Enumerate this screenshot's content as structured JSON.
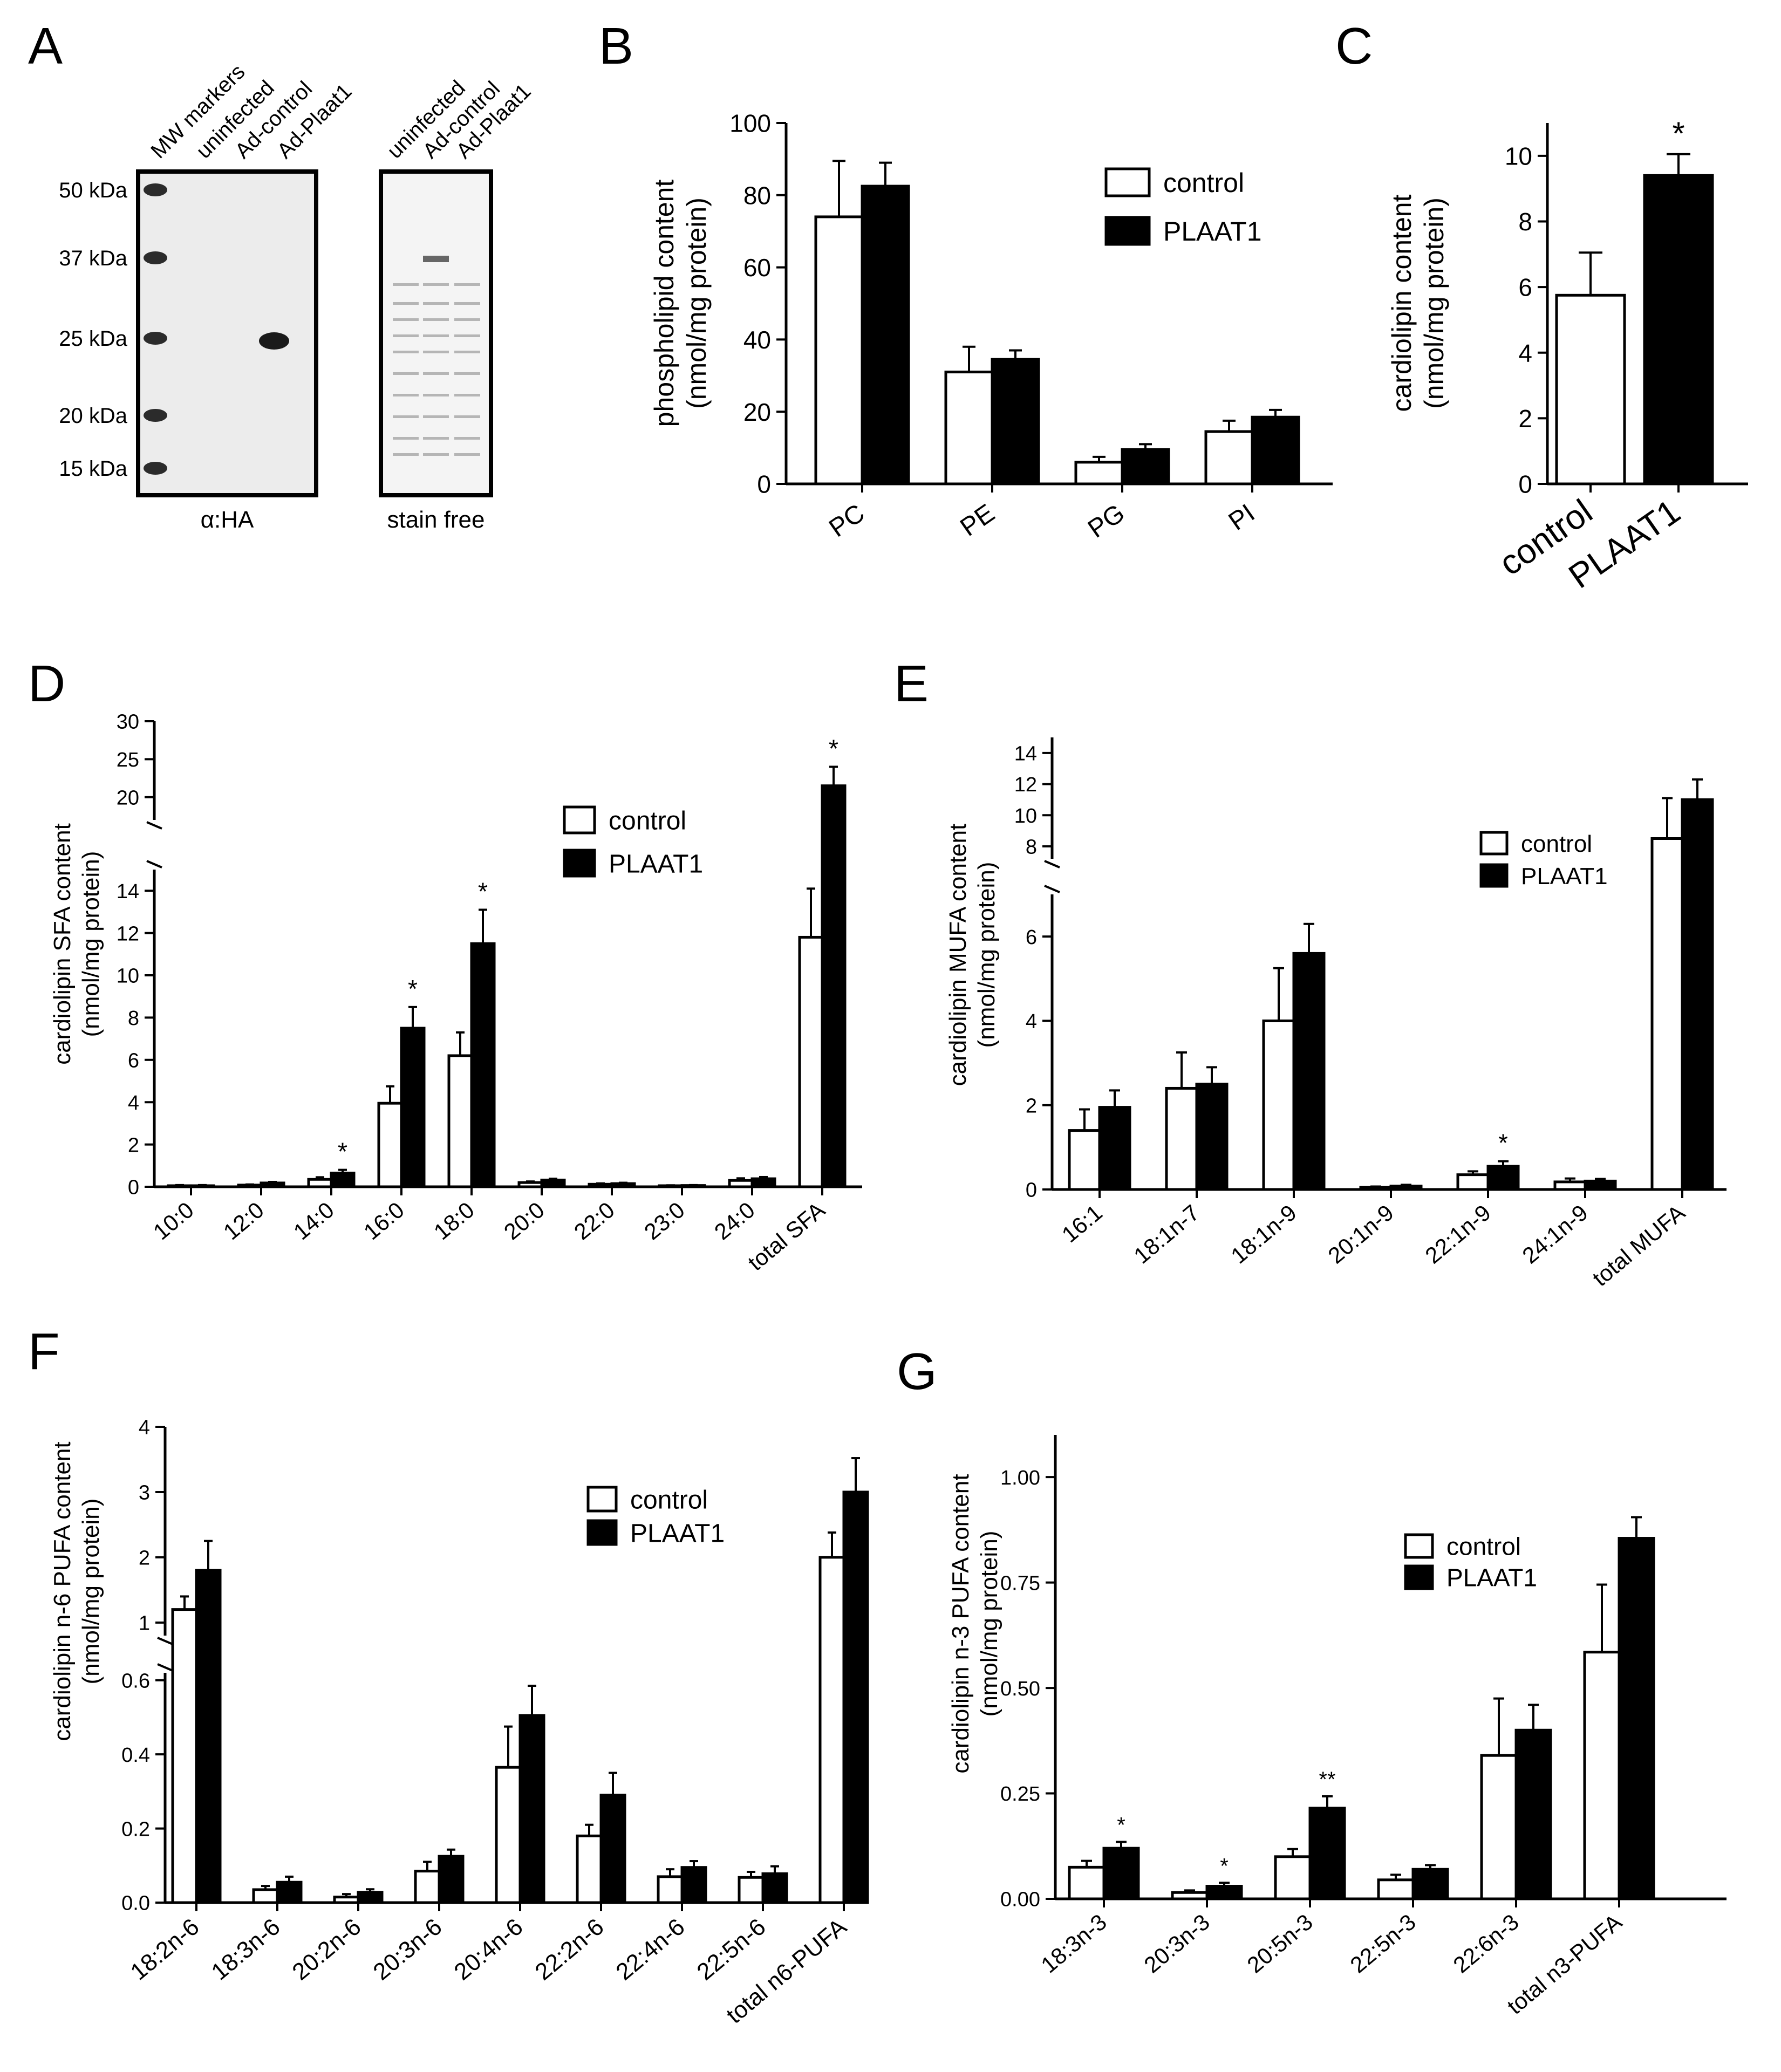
{
  "chart_data": [
    {
      "id": "A",
      "type": "other",
      "panel_label": "A",
      "blots": [
        {
          "lanes": [
            "MW markers",
            "uninfected",
            "Ad-control",
            "Ad-Plaat1"
          ],
          "markers": [
            "50 kDa",
            "37 kDa",
            "25 kDa",
            "20 kDa",
            "15 kDa"
          ],
          "caption": "α:HA"
        },
        {
          "lanes": [
            "uninfected",
            "Ad-control",
            "Ad-Plaat1"
          ],
          "caption": "stain free"
        }
      ]
    },
    {
      "id": "B",
      "type": "bar",
      "panel_label": "B",
      "ylabel": [
        "phospholipid content",
        "(nmol/mg protein)"
      ],
      "ylim": [
        0,
        100
      ],
      "yticks": [
        0,
        20,
        40,
        60,
        80,
        100
      ],
      "categories": [
        "PC",
        "PE",
        "PG",
        "PI"
      ],
      "series": [
        {
          "name": "control",
          "values": [
            74,
            31,
            6,
            14.5
          ],
          "errors": [
            15.5,
            7,
            1.5,
            3
          ]
        },
        {
          "name": "PLAAT1",
          "values": [
            82.5,
            34.5,
            9.5,
            18.5
          ],
          "errors": [
            6.5,
            2.5,
            1.5,
            2
          ]
        }
      ],
      "legend": [
        "control",
        "PLAAT1"
      ],
      "stars": []
    },
    {
      "id": "C",
      "type": "bar",
      "panel_label": "C",
      "ylabel": [
        "cardiolipin content",
        "(nmol/mg protein)"
      ],
      "ylim": [
        0,
        11
      ],
      "yticks": [
        0,
        2,
        4,
        6,
        8,
        10
      ],
      "categories": [
        "control",
        "PLAAT1"
      ],
      "series": [
        {
          "name": "values",
          "values": [
            5.75,
            9.4
          ],
          "errors": [
            1.3,
            0.65
          ]
        }
      ],
      "stars": [
        {
          "category": 1,
          "text": "*"
        }
      ]
    },
    {
      "id": "D",
      "type": "bar",
      "panel_label": "D",
      "ylabel": [
        "cardiolipin SFA content",
        "(nmol/mg protein)"
      ],
      "segments": [
        {
          "ylim": [
            0,
            15
          ],
          "yticks": [
            0,
            2,
            4,
            6,
            8,
            10,
            12,
            14
          ]
        },
        {
          "ylim": [
            17,
            30
          ],
          "yticks": [
            20,
            25,
            30
          ]
        }
      ],
      "categories": [
        "10:0",
        "12:0",
        "14:0",
        "16:0",
        "18:0",
        "20:0",
        "22:0",
        "23:0",
        "24:0",
        "total SFA"
      ],
      "series": [
        {
          "name": "control",
          "values": [
            0.05,
            0.08,
            0.35,
            3.95,
            6.2,
            0.2,
            0.12,
            0.05,
            0.3,
            11.8
          ],
          "errors": [
            0.03,
            0.03,
            0.1,
            0.8,
            1.1,
            0.05,
            0.04,
            0.02,
            0.1,
            2.3
          ]
        },
        {
          "name": "PLAAT1",
          "values": [
            0.05,
            0.18,
            0.65,
            7.5,
            11.5,
            0.32,
            0.15,
            0.06,
            0.38,
            21.5
          ],
          "errors": [
            0.03,
            0.05,
            0.15,
            1.0,
            1.6,
            0.06,
            0.04,
            0.02,
            0.08,
            2.5
          ]
        }
      ],
      "legend": [
        "control",
        "PLAAT1"
      ],
      "stars": [
        {
          "category": 2,
          "text": "*"
        },
        {
          "category": 3,
          "text": "*"
        },
        {
          "category": 4,
          "text": "*"
        },
        {
          "category": 9,
          "text": "*"
        }
      ]
    },
    {
      "id": "E",
      "type": "bar",
      "panel_label": "E",
      "ylabel": [
        "cardiolipin MUFA content",
        "(nmol/mg protein)"
      ],
      "segments": [
        {
          "ylim": [
            0,
            7
          ],
          "yticks": [
            0,
            2,
            4,
            6
          ]
        },
        {
          "ylim": [
            7.2,
            15
          ],
          "yticks": [
            8,
            10,
            12,
            14
          ]
        }
      ],
      "categories": [
        "16:1",
        "18:1n-7",
        "18:1n-9",
        "20:1n-9",
        "22:1n-9",
        "24:1n-9",
        "total MUFA"
      ],
      "series": [
        {
          "name": "control",
          "values": [
            1.4,
            2.4,
            4.0,
            0.05,
            0.35,
            0.18,
            8.5
          ],
          "errors": [
            0.5,
            0.85,
            1.25,
            0.02,
            0.08,
            0.08,
            2.6
          ]
        },
        {
          "name": "PLAAT1",
          "values": [
            1.95,
            2.5,
            5.6,
            0.08,
            0.55,
            0.2,
            11.0
          ],
          "errors": [
            0.4,
            0.4,
            0.7,
            0.03,
            0.12,
            0.05,
            1.3
          ]
        }
      ],
      "legend": [
        "control",
        "PLAAT1"
      ],
      "stars": [
        {
          "category": 4,
          "text": "*"
        }
      ]
    },
    {
      "id": "F",
      "type": "bar",
      "panel_label": "F",
      "ylabel": [
        "cardiolipin n-6 PUFA content",
        "(nmol/mg protein)"
      ],
      "segments": [
        {
          "ylim": [
            0,
            0.62
          ],
          "yticks": [
            0.0,
            0.2,
            0.4,
            0.6
          ],
          "tick_labels": [
            "0.0",
            "0.2",
            "0.4",
            "0.6"
          ]
        },
        {
          "ylim": [
            0.8,
            4
          ],
          "yticks": [
            1,
            2,
            3,
            4
          ],
          "tick_labels": [
            "1",
            "2",
            "3",
            "4"
          ]
        }
      ],
      "categories": [
        "18:2n-6",
        "18:3n-6",
        "20:2n-6",
        "20:3n-6",
        "20:4n-6",
        "22:2n-6",
        "22:4n-6",
        "22:5n-6",
        "total n6-PUFA"
      ],
      "series": [
        {
          "name": "control",
          "values": [
            1.2,
            0.035,
            0.015,
            0.085,
            0.365,
            0.18,
            0.07,
            0.068,
            2.0
          ],
          "errors": [
            0.2,
            0.01,
            0.008,
            0.025,
            0.11,
            0.03,
            0.02,
            0.015,
            0.38
          ]
        },
        {
          "name": "PLAAT1",
          "values": [
            1.8,
            0.055,
            0.028,
            0.125,
            0.505,
            0.29,
            0.095,
            0.078,
            3.0
          ],
          "errors": [
            0.45,
            0.015,
            0.008,
            0.018,
            0.08,
            0.06,
            0.017,
            0.02,
            0.52
          ]
        }
      ],
      "legend": [
        "control",
        "PLAAT1"
      ],
      "stars": []
    },
    {
      "id": "G",
      "type": "bar",
      "panel_label": "G",
      "ylabel": [
        "cardiolipin n-3 PUFA content",
        "(nmol/mg protein)"
      ],
      "ylim": [
        0,
        1.1
      ],
      "yticks": [
        0.0,
        0.25,
        0.5,
        0.75,
        1.0
      ],
      "ytick_labels": [
        "0.00",
        "0.25",
        "0.50",
        "0.75",
        "1.00"
      ],
      "categories": [
        "18:3n-3",
        "20:3n-3",
        "20:5n-3",
        "22:5n-3",
        "22:6n-3",
        "total n3-PUFA"
      ],
      "series": [
        {
          "name": "control",
          "values": [
            0.075,
            0.015,
            0.1,
            0.045,
            0.34,
            0.585
          ],
          "errors": [
            0.015,
            0.005,
            0.018,
            0.012,
            0.135,
            0.16
          ]
        },
        {
          "name": "PLAAT1",
          "values": [
            0.12,
            0.03,
            0.215,
            0.07,
            0.4,
            0.855
          ],
          "errors": [
            0.015,
            0.008,
            0.028,
            0.01,
            0.06,
            0.05
          ]
        }
      ],
      "legend": [
        "control",
        "PLAAT1"
      ],
      "stars": [
        {
          "category": 0,
          "text": "*"
        },
        {
          "category": 1,
          "text": "*"
        },
        {
          "category": 2,
          "text": "**"
        }
      ]
    }
  ]
}
